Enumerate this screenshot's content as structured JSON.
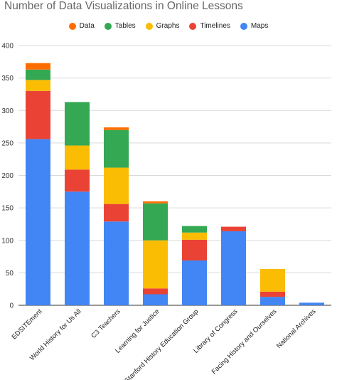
{
  "chart_data": {
    "type": "bar",
    "stacked": true,
    "title": "Number of Data Visualizations in Online Lessons",
    "xlabel": "",
    "ylabel": "",
    "ylim": [
      0,
      400
    ],
    "yticks": [
      0,
      50,
      100,
      150,
      200,
      250,
      300,
      350,
      400
    ],
    "grid": true,
    "legend_position": "top",
    "categories": [
      "EDSITEment",
      "World History for Us All",
      "C3 Teachers",
      "Learning for Justice",
      "Stanford History Education Group",
      "Library of Congress",
      "Facing History and Ourselves",
      "National Archives"
    ],
    "series": [
      {
        "name": "Maps",
        "color": "#4285f4",
        "values": [
          256,
          175,
          129,
          17,
          69,
          114,
          13,
          4
        ]
      },
      {
        "name": "Timelines",
        "color": "#ea4335",
        "values": [
          74,
          34,
          27,
          9,
          32,
          7,
          8,
          0
        ]
      },
      {
        "name": "Graphs",
        "color": "#fbbc04",
        "values": [
          17,
          37,
          56,
          74,
          11,
          0,
          35,
          0
        ]
      },
      {
        "name": "Tables",
        "color": "#34a853",
        "values": [
          16,
          67,
          58,
          57,
          10,
          0,
          0,
          0
        ]
      },
      {
        "name": "Data",
        "color": "#ff6d01",
        "values": [
          10,
          0,
          4,
          3,
          0,
          0,
          0,
          0
        ]
      }
    ],
    "legend_order": [
      "Data",
      "Tables",
      "Graphs",
      "Timelines",
      "Maps"
    ]
  }
}
